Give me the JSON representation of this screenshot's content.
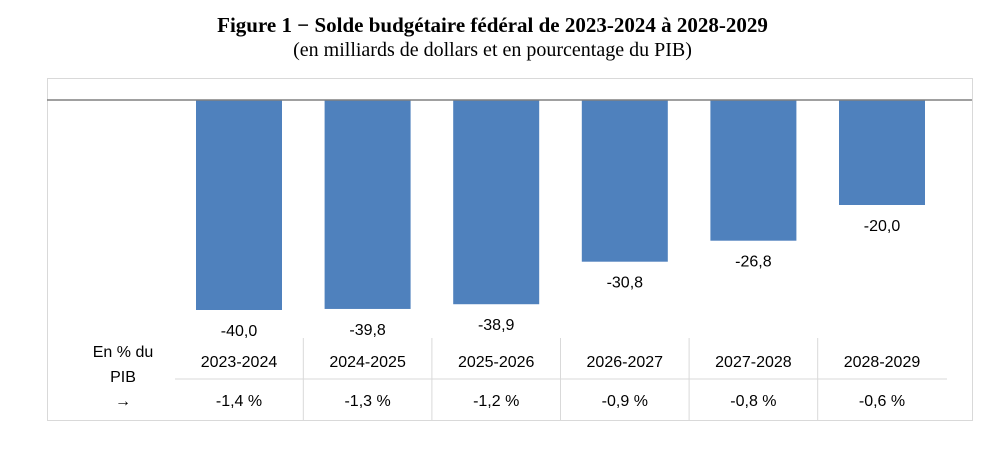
{
  "title": "Figure 1 − Solde budgétaire fédéral de 2023-2024 à 2028-2029",
  "subtitle": "(en milliards de dollars et en pourcentage du PIB)",
  "row_label": {
    "line1": "En % du",
    "line2": "PIB",
    "arrow": "→"
  },
  "colors": {
    "bar": "#4f81bd",
    "axis": "#808080",
    "grid": "#d9d9d9"
  },
  "chart_data": {
    "type": "bar",
    "categories": [
      "2023-2024",
      "2024-2025",
      "2025-2026",
      "2026-2027",
      "2027-2028",
      "2028-2029"
    ],
    "values": [
      -40.0,
      -39.8,
      -38.9,
      -30.8,
      -26.8,
      -20.0
    ],
    "value_labels": [
      "-40,0",
      "-39,8",
      "-38,9",
      "-30,8",
      "-26,8",
      "-20,0"
    ],
    "pct_gdp": [
      "-1,4 %",
      "-1,3 %",
      "-1,2 %",
      "-0,9 %",
      "-0,8 %",
      "-0,6 %"
    ],
    "ylim": [
      -40,
      0
    ],
    "grid": false,
    "legend": "none"
  }
}
